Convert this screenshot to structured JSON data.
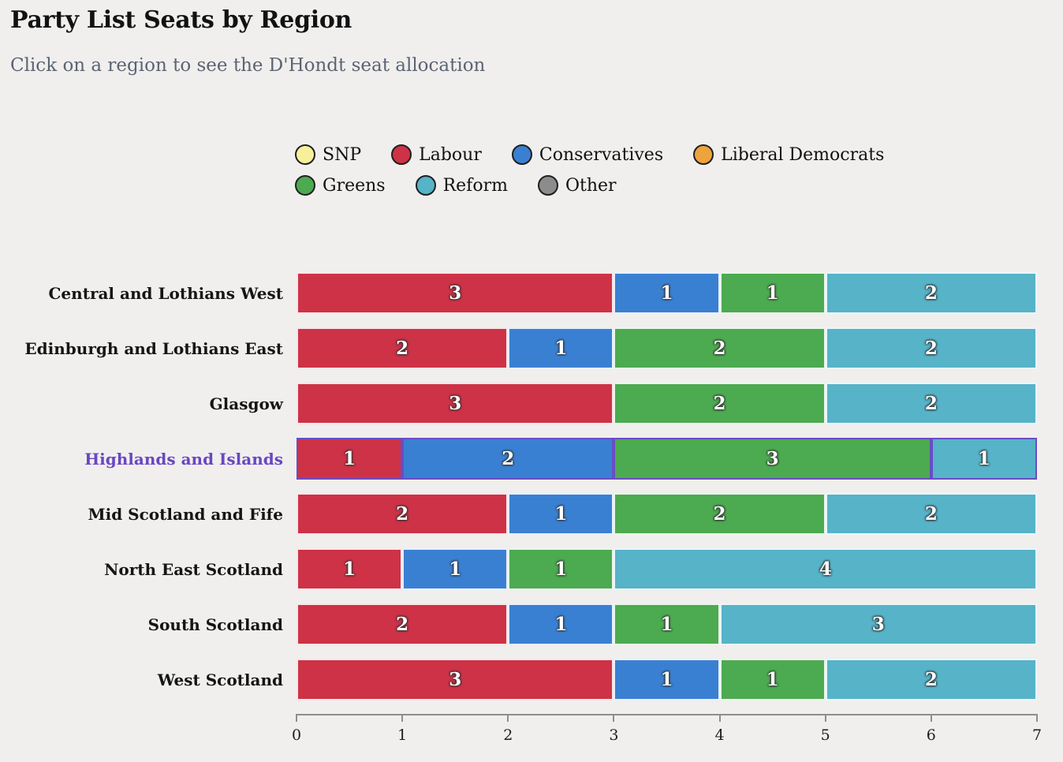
{
  "page": {
    "background_color": "#f0efee"
  },
  "header": {
    "title": "Party List Seats by Region",
    "subtitle": "Click on a region to see the D'Hondt seat allocation"
  },
  "legend": {
    "items": [
      {
        "label": "SNP",
        "color": "#f7f09b"
      },
      {
        "label": "Labour",
        "color": "#cd3246"
      },
      {
        "label": "Conservatives",
        "color": "#3a80d2"
      },
      {
        "label": "Liberal Democrats",
        "color": "#eda43c"
      },
      {
        "label": "Greens",
        "color": "#4caa50"
      },
      {
        "label": "Reform",
        "color": "#56b3c8"
      },
      {
        "label": "Other",
        "color": "#8c8c8c"
      }
    ]
  },
  "chart_data": {
    "type": "bar",
    "orientation": "horizontal",
    "stacked": true,
    "title": "Party List Seats by Region",
    "categories": [
      "Central and Lothians West",
      "Edinburgh and Lothians East",
      "Glasgow",
      "Highlands and Islands",
      "Mid Scotland and Fife",
      "North East Scotland",
      "South Scotland",
      "West Scotland"
    ],
    "series": [
      {
        "name": "Labour",
        "color": "#cd3246",
        "values": [
          3,
          2,
          3,
          1,
          2,
          1,
          2,
          3
        ]
      },
      {
        "name": "Conservatives",
        "color": "#3a80d2",
        "values": [
          1,
          1,
          0,
          2,
          1,
          1,
          1,
          1
        ]
      },
      {
        "name": "Greens",
        "color": "#4caa50",
        "values": [
          1,
          2,
          2,
          3,
          2,
          1,
          1,
          1
        ]
      },
      {
        "name": "Reform",
        "color": "#56b3c8",
        "values": [
          2,
          2,
          2,
          1,
          2,
          4,
          3,
          2
        ]
      }
    ],
    "xlim": [
      0,
      7
    ],
    "x_ticks": [
      "0",
      "1",
      "2",
      "3",
      "4",
      "5",
      "6",
      "7"
    ],
    "grid": false,
    "legend_position": "top",
    "value_labels": "inside",
    "selected_category": "Highlands and Islands",
    "selection_color": "#6a4cc6",
    "selected_label_color": "#6a46c2"
  }
}
